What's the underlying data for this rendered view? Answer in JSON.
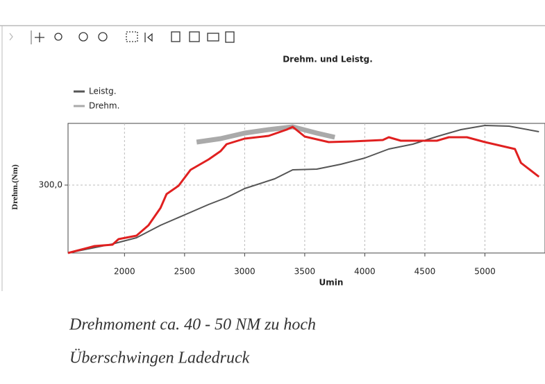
{
  "chart_data": {
    "type": "line",
    "title": "Drehm. und Leistg.",
    "x_label": "Umin",
    "y_label": "Drehm.(Nm)",
    "annotations": [
      "Drehmoment ca. 40 - 50 NM zu hoch",
      "Überschwingen Ladedruck"
    ],
    "xlim": [
      1530,
      5500
    ],
    "xticks": [
      2000,
      2500,
      3000,
      3500,
      4000,
      4500,
      5000
    ],
    "ylim": [
      202,
      389
    ],
    "yticks": [
      {
        "value": 300,
        "label": "300,0"
      }
    ],
    "grid": true,
    "legend": "upper left",
    "series": [
      {
        "name": "Leistg.",
        "color": "#555555",
        "width": 2,
        "x": [
          1530,
          1900,
          2100,
          2300,
          2500,
          2700,
          2850,
          3000,
          3250,
          3400,
          3600,
          3800,
          4000,
          4200,
          4400,
          4600,
          4800,
          5000,
          5200,
          5450
        ],
        "values": [
          202,
          215,
          224,
          242,
          257,
          272,
          282,
          295,
          309,
          322,
          323,
          330,
          339,
          352,
          359,
          370,
          380,
          386,
          385,
          377
        ]
      },
      {
        "name": "Drehm.",
        "color": "#aaaaaa",
        "width": 7,
        "x": [
          2600,
          2800,
          3000,
          3200,
          3400,
          3600,
          3750
        ],
        "values": [
          362,
          367,
          375,
          380,
          384,
          375,
          369
        ]
      },
      {
        "color": "#e02020",
        "width": 3,
        "x": [
          1530,
          1750,
          1900,
          1950,
          2100,
          2200,
          2300,
          2350,
          2450,
          2550,
          2700,
          2800,
          2850,
          3000,
          3200,
          3350,
          3400,
          3500,
          3700,
          3900,
          4150,
          4200,
          4300,
          4600,
          4700,
          4850,
          5000,
          5250,
          5300,
          5450
        ],
        "values": [
          202,
          212,
          214,
          222,
          227,
          242,
          267,
          287,
          299,
          322,
          337,
          349,
          359,
          367,
          371,
          380,
          384,
          370,
          362,
          363,
          365,
          369,
          364,
          364,
          369,
          369,
          362,
          352,
          332,
          312
        ]
      }
    ]
  }
}
